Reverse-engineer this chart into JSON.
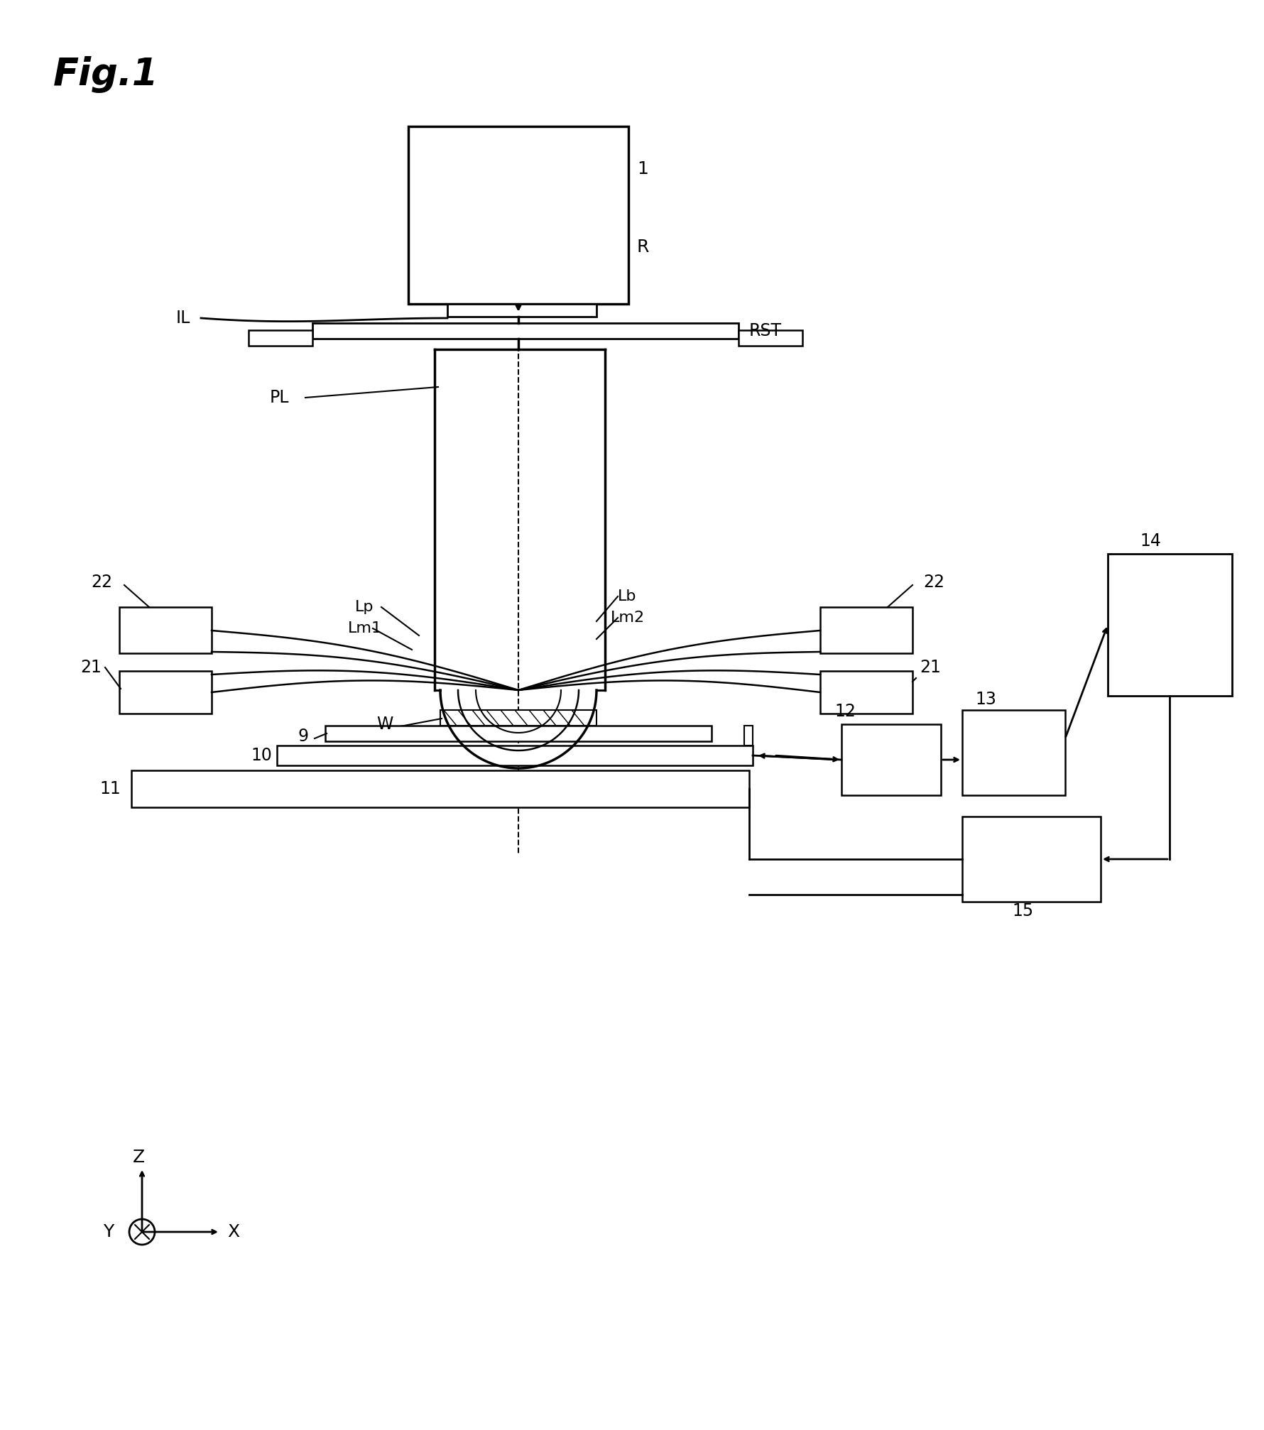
{
  "bg_color": "#ffffff",
  "line_color": "#000000",
  "fig_width": 17.81,
  "fig_height": 20.14,
  "labels": {
    "fig": "Fig.1",
    "R": "R",
    "IL": "IL",
    "RST": "RST",
    "PL": "PL",
    "Lp": "Lp",
    "Lm1": "Lm1",
    "Lb": "Lb",
    "Lm2": "Lm2",
    "W": "W",
    "num_1": "1",
    "num_9": "9",
    "num_10": "10",
    "num_11": "11",
    "num_12": "12",
    "num_13": "13",
    "num_14": "14",
    "num_15": "15",
    "num_21a": "21",
    "num_21b": "21",
    "num_22a": "22",
    "num_22b": "22",
    "Z": "Z",
    "Y": "Y",
    "X": "X"
  }
}
